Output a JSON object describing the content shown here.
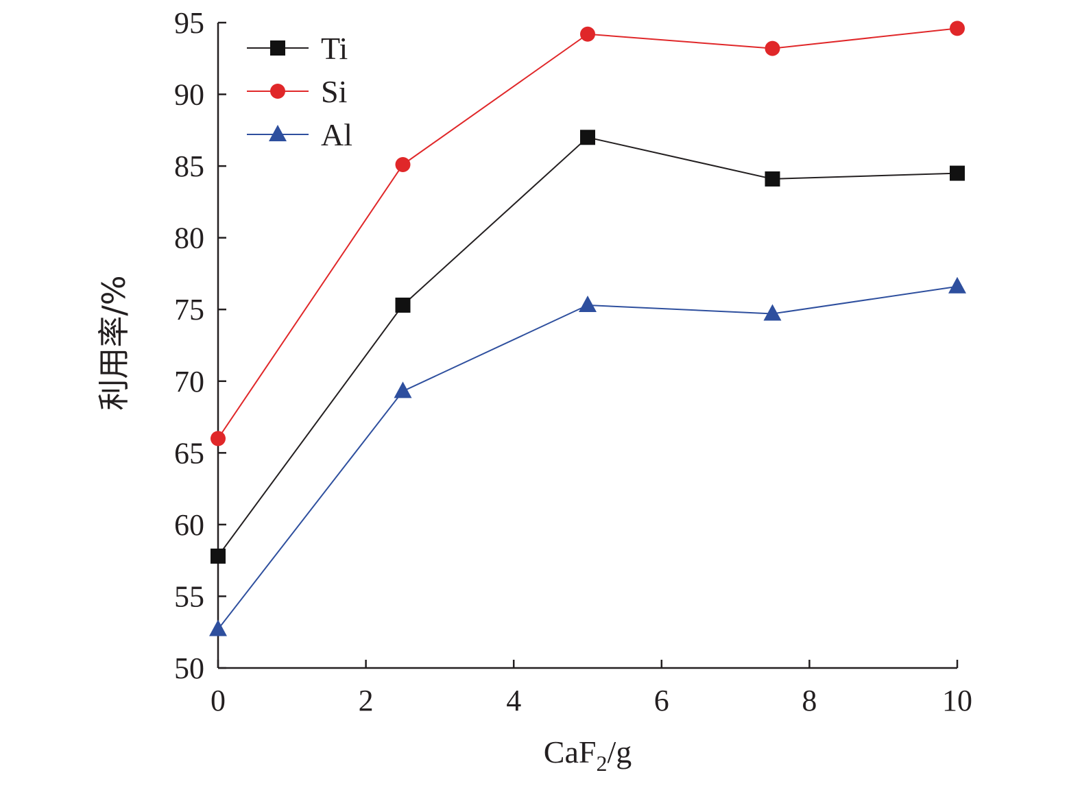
{
  "chart_data": {
    "type": "line",
    "xlabel": {
      "main": "CaF",
      "sub": "2",
      "unit": "/g"
    },
    "ylabel": "利用率/%",
    "xlim": [
      0,
      10
    ],
    "ylim": [
      50,
      95
    ],
    "x_ticks": [
      0,
      2,
      4,
      6,
      8,
      10
    ],
    "y_ticks": [
      50,
      55,
      60,
      65,
      70,
      75,
      80,
      85,
      90,
      95
    ],
    "x_tick_labels": [
      "0",
      "2",
      "4",
      "6",
      "8",
      "10"
    ],
    "y_tick_labels": [
      "50",
      "55",
      "60",
      "65",
      "70",
      "75",
      "80",
      "85",
      "90",
      "95"
    ],
    "grid": false,
    "legend_position": "top-left",
    "x": [
      0,
      2.5,
      5,
      7.5,
      10
    ],
    "series": [
      {
        "name": "Ti",
        "values": [
          57.8,
          75.3,
          87.0,
          84.1,
          84.5
        ],
        "color": "#231f20",
        "marker": "square"
      },
      {
        "name": "Si",
        "values": [
          66.0,
          85.1,
          94.2,
          93.2,
          94.6
        ],
        "color": "#e02729",
        "marker": "circle"
      },
      {
        "name": "Al",
        "values": [
          52.7,
          69.3,
          75.3,
          74.7,
          76.6
        ],
        "color": "#2e4f9e",
        "marker": "triangle"
      }
    ]
  }
}
